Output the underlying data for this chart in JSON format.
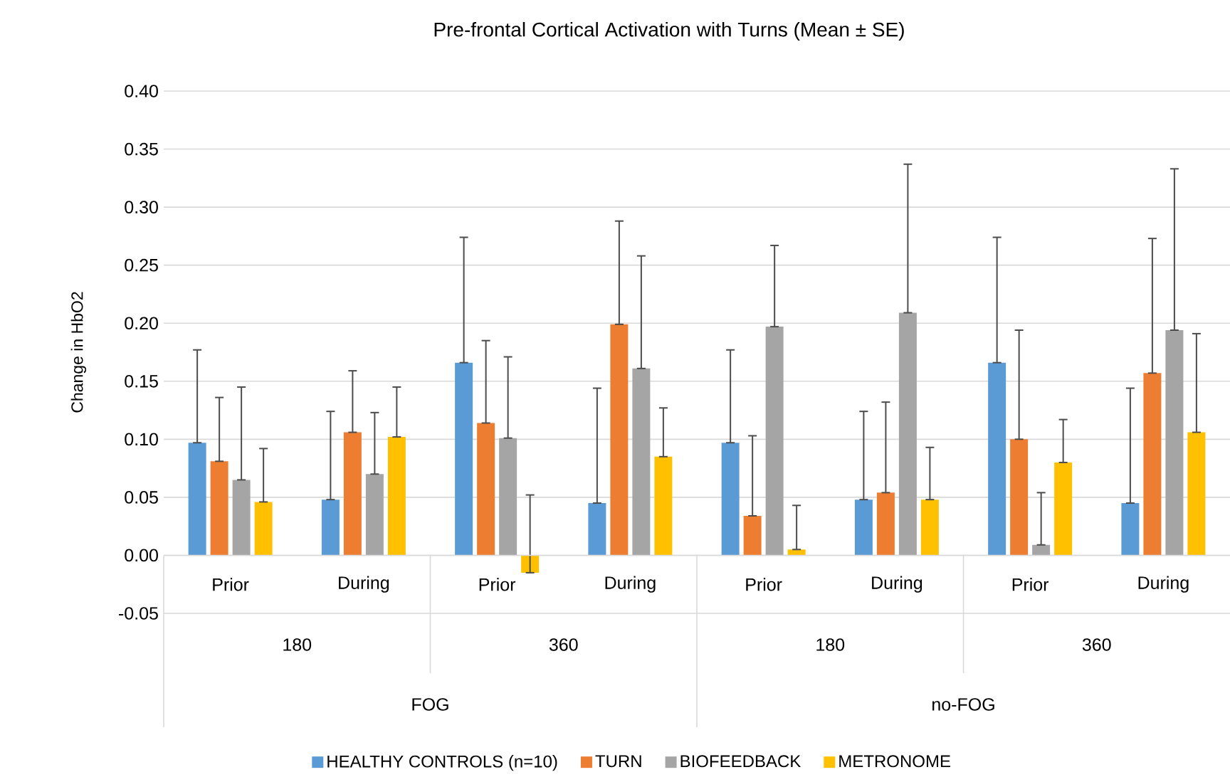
{
  "chart_data": {
    "type": "bar",
    "title": "Pre-frontal Cortical Activation with Turns (Mean ± SE)",
    "ylabel": "Change in HbO2",
    "categories": [
      "Prior",
      "During",
      "Prior",
      "During",
      "Prior",
      "During",
      "Prior",
      "During"
    ],
    "annotations": [
      "180",
      "360",
      "180",
      "360",
      "FOG",
      "no-FOG"
    ],
    "series": [
      {
        "name": "HEALTHY CONTROLS (n=10)",
        "color": "#5b9bd5",
        "values": [
          0.097,
          0.048,
          0.166,
          0.045,
          0.097,
          0.048,
          0.166,
          0.045
        ],
        "errors": [
          [
            0.097,
            0.177
          ],
          [
            0.048,
            0.124
          ],
          [
            0.166,
            0.274
          ],
          [
            0.045,
            0.144
          ],
          [
            0.097,
            0.177
          ],
          [
            0.048,
            0.124
          ],
          [
            0.166,
            0.274
          ],
          [
            0.045,
            0.144
          ]
        ]
      },
      {
        "name": "TURN",
        "color": "#ed7d31",
        "values": [
          0.081,
          0.106,
          0.114,
          0.199,
          0.034,
          0.054,
          0.1,
          0.157
        ],
        "errors": [
          [
            0.081,
            0.136
          ],
          [
            0.106,
            0.159
          ],
          [
            0.114,
            0.185
          ],
          [
            0.199,
            0.288
          ],
          [
            0.034,
            0.103
          ],
          [
            0.054,
            0.132
          ],
          [
            0.1,
            0.194
          ],
          [
            0.157,
            0.273
          ]
        ]
      },
      {
        "name": "BIOFEEDBACK",
        "color": "#a5a5a5",
        "values": [
          0.065,
          0.07,
          0.101,
          0.161,
          0.197,
          0.209,
          0.009,
          0.194
        ],
        "errors": [
          [
            0.065,
            0.145
          ],
          [
            0.07,
            0.123
          ],
          [
            0.101,
            0.171
          ],
          [
            0.161,
            0.258
          ],
          [
            0.197,
            0.267
          ],
          [
            0.209,
            0.337
          ],
          [
            0.009,
            0.054
          ],
          [
            0.194,
            0.333
          ]
        ]
      },
      {
        "name": "METRONOME",
        "color": "#ffc000",
        "values": [
          0.046,
          0.102,
          -0.015,
          0.085,
          0.005,
          0.048,
          0.08,
          0.106
        ],
        "errors": [
          [
            0.046,
            0.092
          ],
          [
            0.102,
            0.145
          ],
          [
            -0.015,
            0.052
          ],
          [
            0.085,
            0.127
          ],
          [
            0.005,
            0.043
          ],
          [
            0.048,
            0.093
          ],
          [
            0.08,
            0.117
          ],
          [
            0.106,
            0.191
          ]
        ]
      }
    ],
    "ylim": [
      -0.05,
      0.4
    ],
    "yticks": [
      {
        "value": -0.05,
        "label": "-0.05"
      },
      {
        "value": 0,
        "label": "0.00"
      },
      {
        "value": 0.05,
        "label": "0.05"
      },
      {
        "value": 0.1,
        "label": "0.10"
      },
      {
        "value": 0.15,
        "label": "0.15"
      },
      {
        "value": 0.2,
        "label": "0.20"
      },
      {
        "value": 0.25,
        "label": "0.25"
      },
      {
        "value": 0.3,
        "label": "0.30"
      },
      {
        "value": 0.35,
        "label": "0.35"
      },
      {
        "value": 0.4,
        "label": "0.40"
      }
    ],
    "grid": "y",
    "legend": "bottom"
  }
}
